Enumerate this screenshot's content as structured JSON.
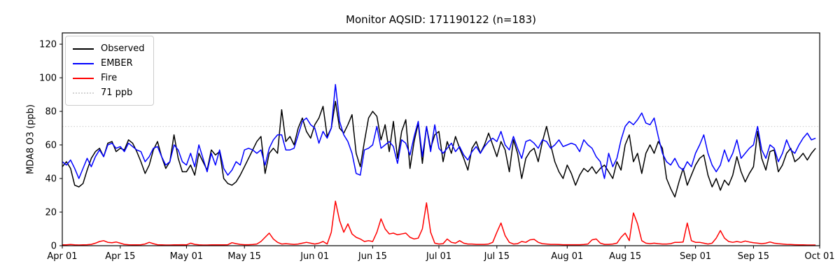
{
  "chart_data": {
    "type": "line",
    "title": "Monitor AQSID: 171190122 (n=183)",
    "ylabel": "MDA8 O3 (ppb)",
    "xlabel": "",
    "n_points": 183,
    "grid": false,
    "legend_position": "upper left",
    "ylim": [
      0,
      126.7
    ],
    "xlim_days": [
      0,
      183
    ],
    "y_ticks": [
      0,
      20,
      40,
      60,
      80,
      100,
      120
    ],
    "x_ticks": {
      "positions": [
        0,
        14,
        30,
        44,
        61,
        75,
        91,
        105,
        122,
        136,
        153,
        167,
        183
      ],
      "labels": [
        "Apr 01",
        "Apr 15",
        "May 01",
        "May 15",
        "Jun 01",
        "Jun 15",
        "Jul 01",
        "Jul 15",
        "Aug 01",
        "Aug 15",
        "Sep 01",
        "Sep 15",
        "Oct 01"
      ]
    },
    "threshold": {
      "label": "71 ppb",
      "value": 71,
      "color": "#d3d3d3",
      "style": "dotted"
    },
    "series": [
      {
        "name": "Observed",
        "color": "#000000",
        "values": [
          47,
          50,
          46,
          36,
          35,
          37,
          45,
          52,
          56,
          58,
          53,
          61,
          62,
          56,
          58,
          57,
          63,
          61,
          56,
          50,
          43,
          48,
          57,
          62,
          53,
          46,
          50,
          66,
          52,
          44,
          44,
          48,
          42,
          55,
          50,
          45,
          57,
          54,
          56,
          40,
          37,
          36,
          38,
          42,
          47,
          52,
          57,
          62,
          65,
          43,
          55,
          58,
          55,
          81,
          62,
          65,
          60,
          70,
          76,
          68,
          64,
          72,
          76,
          83,
          65,
          70,
          86,
          70,
          67,
          72,
          78,
          55,
          47,
          62,
          76,
          80,
          77,
          63,
          72,
          56,
          74,
          52,
          68,
          75,
          46,
          62,
          73,
          49,
          71,
          58,
          66,
          68,
          50,
          62,
          55,
          65,
          58,
          52,
          45,
          58,
          62,
          55,
          60,
          67,
          60,
          53,
          62,
          57,
          44,
          63,
          55,
          40,
          52,
          56,
          58,
          50,
          62,
          71,
          60,
          50,
          44,
          40,
          48,
          43,
          36,
          42,
          46,
          44,
          47,
          43,
          46,
          48,
          44,
          40,
          50,
          45,
          60,
          66,
          50,
          55,
          43,
          55,
          60,
          55,
          62,
          58,
          40,
          34,
          29,
          38,
          46,
          36,
          42,
          48,
          52,
          54,
          42,
          35,
          40,
          33,
          39,
          36,
          42,
          53,
          44,
          38,
          43,
          47,
          68,
          52,
          45,
          56,
          57,
          44,
          48,
          55,
          58,
          50,
          52,
          55,
          51,
          55,
          58
        ]
      },
      {
        "name": "EMBER",
        "color": "#0000ff",
        "values": [
          50,
          48,
          51,
          46,
          40,
          46,
          52,
          47,
          53,
          57,
          53,
          60,
          61,
          58,
          59,
          56,
          61,
          59,
          57,
          56,
          50,
          53,
          58,
          59,
          53,
          48,
          50,
          60,
          57,
          50,
          48,
          55,
          47,
          60,
          52,
          44,
          55,
          48,
          57,
          46,
          42,
          45,
          50,
          48,
          57,
          58,
          57,
          55,
          57,
          48,
          58,
          63,
          66,
          66,
          57,
          57,
          58,
          66,
          74,
          76,
          72,
          70,
          61,
          68,
          64,
          70,
          96,
          74,
          66,
          62,
          55,
          43,
          42,
          57,
          58,
          60,
          71,
          58,
          60,
          62,
          59,
          49,
          63,
          61,
          54,
          65,
          74,
          53,
          71,
          56,
          72,
          58,
          55,
          58,
          61,
          56,
          59,
          54,
          51,
          56,
          59,
          55,
          59,
          62,
          64,
          62,
          68,
          60,
          57,
          65,
          58,
          52,
          62,
          63,
          61,
          58,
          63,
          62,
          58,
          60,
          63,
          59,
          60,
          61,
          60,
          56,
          63,
          60,
          58,
          53,
          50,
          40,
          55,
          47,
          52,
          63,
          71,
          74,
          72,
          75,
          79,
          73,
          72,
          76,
          65,
          55,
          50,
          48,
          52,
          47,
          45,
          50,
          47,
          55,
          60,
          66,
          55,
          48,
          44,
          48,
          57,
          50,
          55,
          63,
          52,
          55,
          58,
          60,
          71,
          57,
          52,
          60,
          58,
          50,
          55,
          63,
          57,
          55,
          60,
          64,
          67,
          63,
          64
        ]
      },
      {
        "name": "Fire",
        "color": "#ff0000",
        "values": [
          0.5,
          0.5,
          0.7,
          0.5,
          0.4,
          0.5,
          0.6,
          0.8,
          1.5,
          2.5,
          3,
          2,
          1.8,
          2.2,
          1.5,
          0.8,
          0.6,
          0.5,
          0.5,
          0.6,
          1,
          2,
          1.2,
          0.6,
          0.5,
          0.4,
          0.4,
          0.5,
          0.5,
          0.6,
          0.5,
          1.5,
          0.8,
          0.5,
          0.4,
          0.4,
          0.5,
          0.5,
          0.5,
          0.5,
          0.6,
          1.8,
          1.2,
          0.8,
          0.6,
          0.6,
          0.7,
          1,
          2.5,
          5,
          7.5,
          4,
          2,
          1,
          1.2,
          1,
          0.8,
          1,
          1.5,
          2,
          1.5,
          1,
          1.5,
          2.5,
          1,
          8,
          26.5,
          15,
          8,
          13,
          7,
          5,
          4,
          2.5,
          3,
          2.5,
          8,
          16,
          10,
          7,
          7.5,
          6.5,
          7,
          7.5,
          5,
          4,
          4.5,
          10,
          25.5,
          8,
          1.5,
          1,
          1.2,
          4,
          2,
          1.5,
          3,
          1.5,
          1,
          1,
          0.8,
          0.8,
          0.8,
          1,
          2,
          8,
          13.5,
          6,
          2,
          1,
          1.2,
          2.5,
          2,
          3.5,
          3.8,
          2,
          1.2,
          1,
          0.8,
          0.8,
          0.7,
          0.6,
          0.6,
          0.6,
          0.6,
          0.6,
          0.7,
          1,
          3.5,
          4,
          1.5,
          0.8,
          0.8,
          1,
          1.5,
          5,
          7.5,
          3,
          19.5,
          13,
          3,
          1.5,
          1.2,
          1.5,
          1.2,
          1,
          1,
          1.2,
          2,
          2,
          2.2,
          13.5,
          3,
          2,
          2,
          1.5,
          1,
          1.5,
          4.5,
          9,
          4.5,
          2.5,
          2,
          2.5,
          2,
          2.8,
          2.2,
          1.8,
          1.5,
          1.2,
          1.5,
          2.2,
          1.5,
          1.2,
          1,
          0.8,
          0.7,
          0.6,
          0.5,
          0.5,
          0.4,
          0.4,
          0.4
        ]
      }
    ]
  }
}
